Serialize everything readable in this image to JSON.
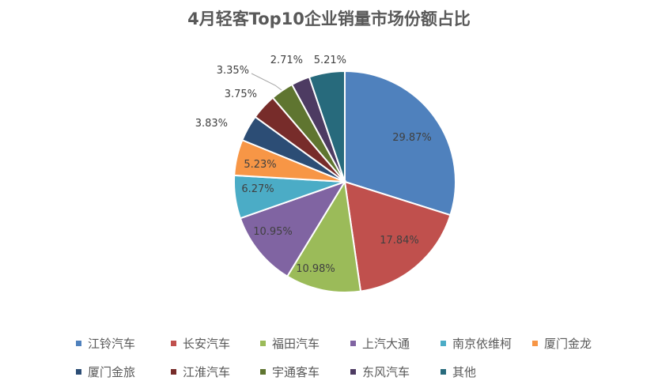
{
  "chart_data": {
    "type": "pie",
    "title": "4月轻客Top10企业销量市场份额占比",
    "unit": "%",
    "slices": [
      {
        "name": "江铃汽车",
        "value": 29.87,
        "label": "29.87%",
        "color": "#4f81bd"
      },
      {
        "name": "长安汽车",
        "value": 17.84,
        "label": "17.84%",
        "color": "#c0504d"
      },
      {
        "name": "福田汽车",
        "value": 10.98,
        "label": "10.98%",
        "color": "#9bbb59"
      },
      {
        "name": "上汽大通",
        "value": 10.95,
        "label": "10.95%",
        "color": "#8064a2"
      },
      {
        "name": "南京依维柯",
        "value": 6.27,
        "label": "6.27%",
        "color": "#4bacc6"
      },
      {
        "name": "厦门金龙",
        "value": 5.23,
        "label": "5.23%",
        "color": "#f79646"
      },
      {
        "name": "厦门金旅",
        "value": 3.83,
        "label": "3.83%",
        "color": "#2c4d75"
      },
      {
        "name": "江淮汽车",
        "value": 3.75,
        "label": "3.75%",
        "color": "#772c2a"
      },
      {
        "name": "宇通客车",
        "value": 3.35,
        "label": "3.35%",
        "color": "#5f7530"
      },
      {
        "name": "东风汽车",
        "value": 2.71,
        "label": "2.71%",
        "color": "#4d3b62"
      },
      {
        "name": "其他",
        "value": 5.21,
        "label": "5.21%",
        "color": "#276a7c"
      }
    ],
    "legend_position": "bottom",
    "start_angle_deg": 0,
    "direction": "clockwise"
  }
}
